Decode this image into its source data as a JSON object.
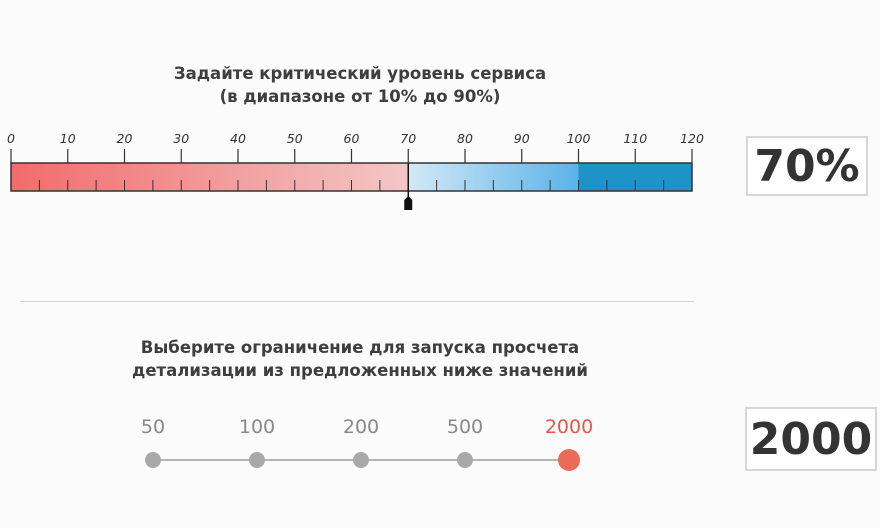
{
  "service_level": {
    "heading_line1": "Задайте критический уровень сервиса",
    "heading_line2": "(в диапазоне от 10% до 90%)",
    "scale_min": 0,
    "scale_max": 120,
    "major_ticks": [
      "0",
      "10",
      "20",
      "30",
      "40",
      "50",
      "60",
      "70",
      "80",
      "90",
      "100",
      "110",
      "120"
    ],
    "value": 70,
    "display": "70%",
    "colors": {
      "low_start": "#f26b6b",
      "low_end": "#f3c7c7",
      "mid_start": "#d3e8f6",
      "mid_end": "#5bb2ea",
      "high": "#1d93c7",
      "handle": "#111111"
    },
    "band_boundaries": [
      70,
      100
    ]
  },
  "detail_limit": {
    "heading_line1": "Выберите ограничение для запуска просчета",
    "heading_line2": "детализации из предложенных ниже значений",
    "options": [
      "50",
      "100",
      "200",
      "500",
      "2000"
    ],
    "selected_index": 4,
    "display": "2000"
  }
}
